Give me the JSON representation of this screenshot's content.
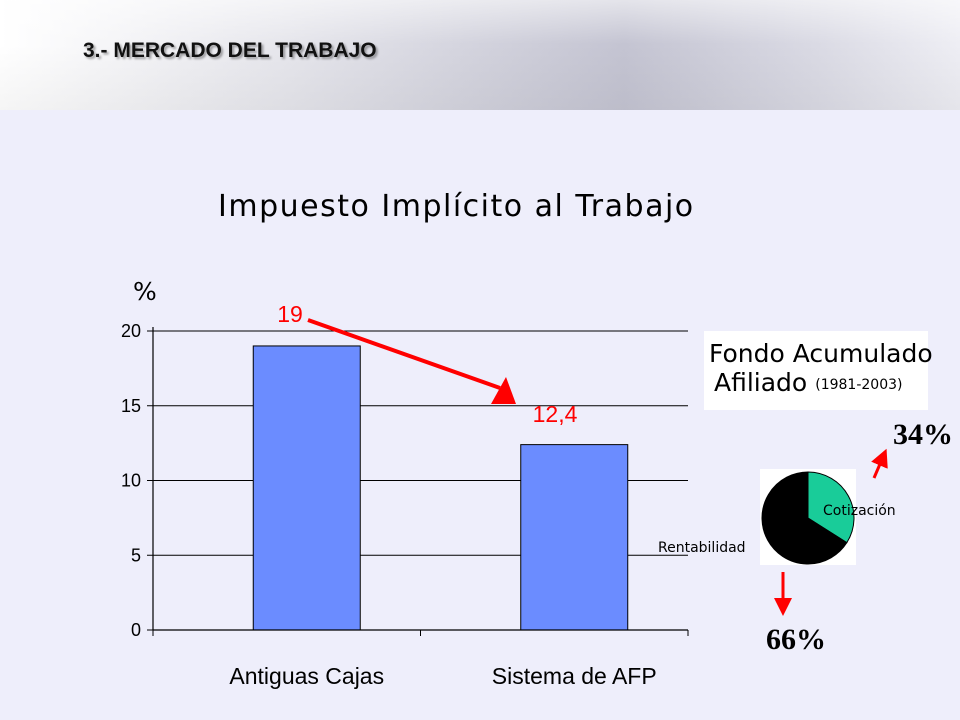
{
  "slide": {
    "title": "3.- MERCADO DEL TRABAJO"
  },
  "chart_data": [
    {
      "type": "bar",
      "title": "Impuesto Implícito al Trabajo",
      "ylabel": "%",
      "xlabel": "",
      "categories": [
        "Antiguas Cajas",
        "Sistema de AFP"
      ],
      "values": [
        19,
        12.4
      ],
      "value_labels": [
        "19",
        "12,4"
      ],
      "ylim": [
        0,
        20
      ],
      "yticks": [
        0,
        5,
        10,
        15,
        20
      ],
      "ytick_labels": [
        "0",
        "5",
        "10",
        "15",
        "20"
      ],
      "grid": true,
      "bar_color": "#6b8cff",
      "value_label_color": "#ff0000",
      "annotation": "red arrow from 19 to 12,4"
    },
    {
      "type": "pie",
      "title": "Fondo Acumulado Afiliado",
      "title_line1": "Fondo Acumulado",
      "title_line2": "Afiliado",
      "period": "(1981-2003)",
      "slices": [
        {
          "label": "Cotización",
          "value": 34,
          "value_label": "34%",
          "color": "#19cc99"
        },
        {
          "label": "Rentabilidad",
          "value": 66,
          "value_label": "66%",
          "color": "#000000"
        }
      ]
    }
  ],
  "colors": {
    "background": "#eeeefb",
    "accent_red": "#ff0000",
    "bar_blue": "#6b8cff"
  }
}
